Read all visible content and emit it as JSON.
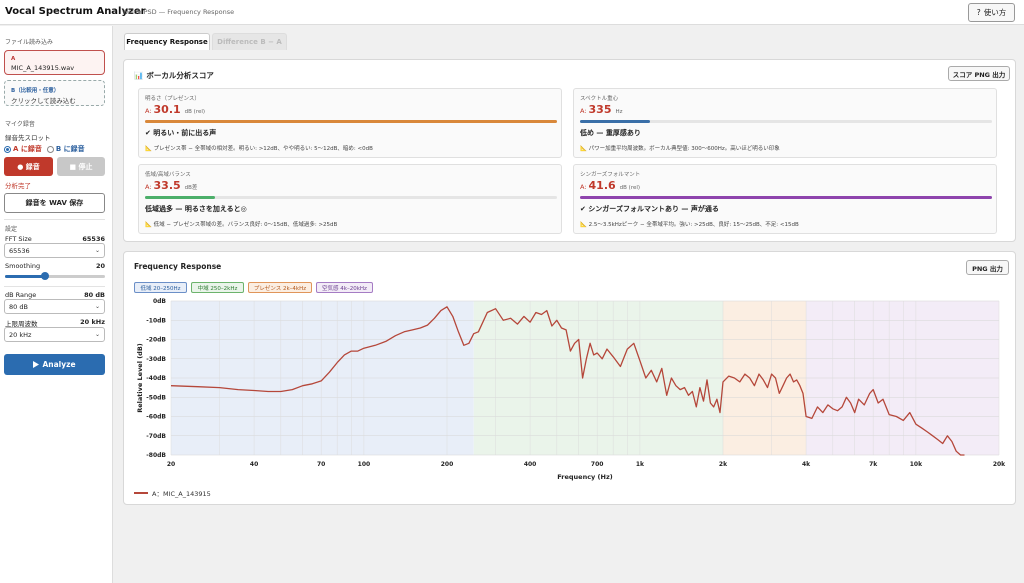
{
  "app": {
    "title": "Vocal Spectrum Analyzer",
    "subtitle": "Welch PSD — Frequency Response",
    "help_icon": "?",
    "help_label": "使い方"
  },
  "sidebar": {
    "file_section": "ファイル読み込み",
    "file_a_key": "A",
    "file_a_name": "MIC_A_143915.wav",
    "file_b_key": "B（比較用・任意）",
    "file_b_hint": "クリックして読み込む",
    "mic_section": "マイク録音",
    "slot_label": "録音先スロット",
    "slot_a": "A に録音",
    "slot_b": "B に録音",
    "selected_slot": "A",
    "rec_label": "● 録音",
    "stop_label": "■ 停止",
    "status": "分析完了",
    "wav_save": "録音を WAV 保存",
    "settings_section": "設定",
    "fft_label": "FFT Size",
    "fft_value": "65536",
    "fft_select": "65536",
    "smoothing_label": "Smoothing",
    "smoothing_value": "20",
    "smoothing_level": 0.4,
    "db_range_label": "dB Range",
    "db_range_value": "80 dB",
    "db_range_select": "80 dB",
    "upper_label": "上限周波数",
    "upper_value": "20 kHz",
    "upper_select": "20 kHz",
    "analyze_label": "Analyze",
    "analyze_icon": "play-icon"
  },
  "tabs": {
    "freq": "Frequency Response",
    "diff": "Difference B − A"
  },
  "scores": {
    "title": "ボーカル分析スコア",
    "export": "スコア PNG 出力",
    "cards": [
      {
        "name": "明るさ（プレゼンス）",
        "label": "A:",
        "value": "30.1",
        "unit": "dB (rel)",
        "level": 1.0,
        "color": "#d9883a",
        "verdict": "✔ 明るい・前に出る声",
        "note": "📐 プレゼンス帯 − 全帯域の相対差。明るい: >12dB、やや明るい: 5〜12dB、暗め: <0dB"
      },
      {
        "name": "スペクトル重心",
        "label": "A:",
        "value": "335",
        "unit": "Hz",
        "level": 0.17,
        "color": "#3a6fa8",
        "verdict": "低め — 重厚感あり",
        "note": "📐 パワー加重平均周波数。ボーカル典型値: 300〜600Hz。高いほど明るい印象"
      },
      {
        "name": "低域/高域バランス",
        "label": "A:",
        "value": "33.5",
        "unit": "dB差",
        "level": 0.17,
        "color": "#4caf6a",
        "verdict": "低域過多 — 明るさを加えると◎",
        "note": "📐 低域 − プレゼンス帯域の差。バランス良好: 0〜15dB、低域過多: >25dB"
      },
      {
        "name": "シンガーズフォルマント",
        "label": "A:",
        "value": "41.6",
        "unit": "dB (rel)",
        "level": 1.0,
        "color": "#8e44ad",
        "verdict": "✔ シンガーズフォルマントあり — 声が通る",
        "note": "📐 2.5〜3.5kHzピーク − 全帯域平均。強い: >25dB、良好: 15〜25dB、不足: <15dB"
      }
    ]
  },
  "freq_panel": {
    "title": "Frequency Response",
    "export": "PNG 出力",
    "bands": [
      {
        "label": "低域 20–250Hz",
        "from": 20,
        "to": 250,
        "fill": "#e8eef8",
        "border": "#6b8fc7",
        "text": "#2b5f9e"
      },
      {
        "label": "中域 250–2kHz",
        "from": 250,
        "to": 2000,
        "fill": "#eaf4ea",
        "border": "#6cb36c",
        "text": "#2e7d32"
      },
      {
        "label": "プレゼンス 2k–4kHz",
        "from": 2000,
        "to": 4000,
        "fill": "#fbeee2",
        "border": "#e0955a",
        "text": "#b35a1f"
      },
      {
        "label": "空気感 4k–20kHz",
        "from": 4000,
        "to": 20000,
        "fill": "#f3ecf7",
        "border": "#a57cc4",
        "text": "#6a3d8f"
      }
    ],
    "legend": "A：MIC_A_143915"
  },
  "chart_data": {
    "type": "line",
    "xscale": "log",
    "xlim": [
      20,
      20000
    ],
    "ylim": [
      -80,
      0
    ],
    "xlabel": "Frequency (Hz)",
    "ylabel": "Relative Level (dB)",
    "x_ticks": [
      20,
      40,
      70,
      100,
      200,
      400,
      700,
      1000,
      2000,
      4000,
      7000,
      10000,
      20000
    ],
    "x_tick_labels": [
      "20",
      "40",
      "70",
      "100",
      "200",
      "400",
      "700",
      "1k",
      "2k",
      "4k",
      "7k",
      "10k",
      "20k"
    ],
    "y_ticks": [
      0,
      -10,
      -20,
      -30,
      -40,
      -50,
      -60,
      -70,
      -80
    ],
    "y_tick_labels": [
      "0dB",
      "-10dB",
      "-20dB",
      "-30dB",
      "-40dB",
      "-50dB",
      "-60dB",
      "-70dB",
      "-80dB"
    ],
    "grid": true,
    "series": [
      {
        "name": "A：MIC_A_143915",
        "color": "#b5473a",
        "x": [
          20,
          25,
          30,
          35,
          40,
          45,
          50,
          55,
          60,
          65,
          70,
          75,
          80,
          85,
          90,
          95,
          100,
          110,
          120,
          130,
          140,
          150,
          160,
          170,
          180,
          190,
          200,
          210,
          220,
          230,
          240,
          250,
          260,
          280,
          300,
          320,
          340,
          360,
          380,
          400,
          420,
          440,
          460,
          480,
          500,
          520,
          540,
          560,
          580,
          600,
          620,
          640,
          660,
          680,
          700,
          730,
          760,
          800,
          850,
          900,
          950,
          1000,
          1050,
          1100,
          1150,
          1200,
          1250,
          1300,
          1350,
          1400,
          1450,
          1500,
          1550,
          1600,
          1650,
          1700,
          1750,
          1800,
          1850,
          1900,
          1950,
          2000,
          2100,
          2200,
          2300,
          2400,
          2500,
          2600,
          2700,
          2800,
          2900,
          3000,
          3100,
          3200,
          3300,
          3400,
          3500,
          3600,
          3700,
          3800,
          3900,
          4000,
          4200,
          4400,
          4600,
          4800,
          5000,
          5200,
          5400,
          5600,
          5800,
          6000,
          6200,
          6500,
          6800,
          7000,
          7300,
          7600,
          8000,
          8500,
          9000,
          9500,
          10000,
          10500,
          11000,
          11500,
          12000,
          12500,
          13000,
          13500,
          14000,
          14500,
          15000
        ],
        "y": [
          -44,
          -44.5,
          -45,
          -46,
          -46.5,
          -47,
          -47,
          -46,
          -44,
          -43,
          -41.5,
          -37,
          -32,
          -28,
          -26,
          -26,
          -24.5,
          -23,
          -21,
          -18,
          -16,
          -15,
          -14,
          -12.5,
          -9,
          -5,
          -3,
          -8,
          -16,
          -23,
          -22,
          -17,
          -16,
          -6,
          -4,
          -10,
          -9,
          -12,
          -8,
          -11,
          -6,
          -7,
          -5,
          -13,
          -10,
          -14,
          -15,
          -26,
          -22,
          -20,
          -40,
          -30,
          -22,
          -28,
          -27,
          -30,
          -25,
          -29,
          -34,
          -25,
          -22,
          -31,
          -40,
          -36,
          -42,
          -35,
          -49,
          -40,
          -44,
          -46,
          -45,
          -49,
          -47,
          -55,
          -45,
          -52,
          -41,
          -53,
          -55,
          -51,
          -58,
          -42,
          -39,
          -40,
          -42,
          -38,
          -40,
          -44,
          -38,
          -41,
          -45,
          -38,
          -40,
          -48,
          -44,
          -40,
          -38,
          -42,
          -41,
          -44,
          -48,
          -60,
          -61,
          -55,
          -58,
          -54,
          -56,
          -57,
          -55,
          -50,
          -53,
          -58,
          -51,
          -54,
          -48,
          -46,
          -53,
          -51,
          -59,
          -60,
          -62,
          -58,
          -64,
          -66,
          -68,
          -70,
          -72,
          -74,
          -70,
          -73,
          -78,
          -80,
          -80
        ]
      }
    ]
  }
}
